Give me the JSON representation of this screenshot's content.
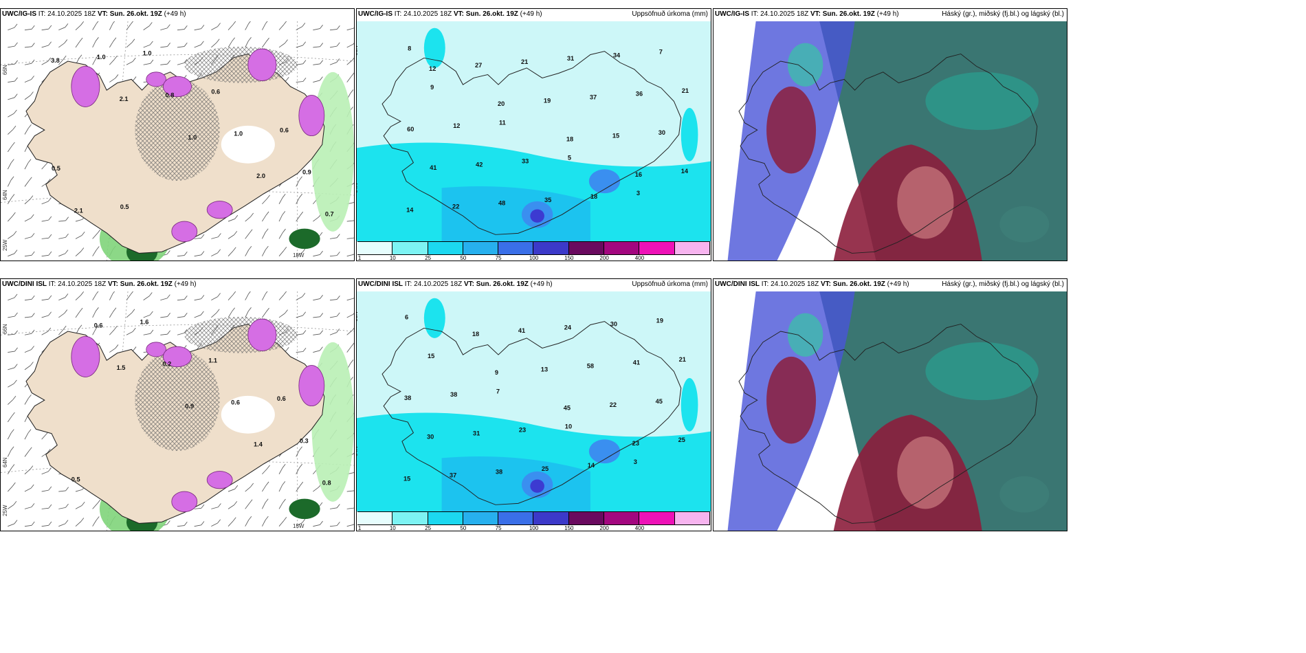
{
  "panels": [
    {
      "model": "UWC/IG-IS",
      "it_label": "IT:",
      "it": "24.10.2025 18Z",
      "vt_label": "VT:",
      "vt": "Sun. 26.okt. 19Z",
      "lead": "(+49 h)",
      "right": "",
      "kind": "precip_type"
    },
    {
      "model": "UWC/IG-IS",
      "it_label": "IT:",
      "it": "24.10.2025 18Z",
      "vt_label": "VT:",
      "vt": "Sun. 26.okt. 19Z",
      "lead": "(+49 h)",
      "right": "Uppsöfnuð úrkoma (mm)",
      "kind": "accum"
    },
    {
      "model": "UWC/IG-IS",
      "it_label": "IT:",
      "it": "24.10.2025 18Z",
      "vt_label": "VT:",
      "vt": "Sun. 26.okt. 19Z",
      "lead": "(+49 h)",
      "right": "Háský (gr.), miðský (fj.bl.) og lágský (bl.)",
      "kind": "clouds"
    },
    {
      "model": "UWC/DINI ISL",
      "it_label": "IT:",
      "it": "24.10.2025 18Z",
      "vt_label": "VT:",
      "vt": "Sun. 26.okt. 19Z",
      "lead": "(+49 h)",
      "right": "",
      "kind": "precip_type"
    },
    {
      "model": "UWC/DINI ISL",
      "it_label": "IT:",
      "it": "24.10.2025 18Z",
      "vt_label": "VT:",
      "vt": "Sun. 26.okt. 19Z",
      "lead": "(+49 h)",
      "right": "Uppsöfnuð úrkoma (mm)",
      "kind": "accum"
    },
    {
      "model": "UWC/DINI ISL",
      "it_label": "IT:",
      "it": "24.10.2025 18Z",
      "vt_label": "VT:",
      "vt": "Sun. 26.okt. 19Z",
      "lead": "(+49 h)",
      "right": "Háský (gr.), miðský (fj.bl.) og lágský (bl.)",
      "kind": "clouds"
    }
  ],
  "axis_labels": {
    "lat66": "66N",
    "lat64": "64N",
    "lon25": "25W",
    "lon15": "15W"
  },
  "colorbar": {
    "ticks": [
      "1",
      "10",
      "25",
      "50",
      "75",
      "100",
      "150",
      "200",
      "400"
    ],
    "colors": [
      "#e6fdfd",
      "#7df3f3",
      "#1cd8f0",
      "#27b0ee",
      "#3a6fe8",
      "#3c39c9",
      "#6a0a5f",
      "#a3077f",
      "#ee12b7",
      "#f7b4ef"
    ]
  },
  "precip_labels_top": [
    "3.8",
    "2.1",
    "1.0",
    "2.0",
    "0.7",
    "1.0",
    "0.8",
    "1.0",
    "0.9",
    "2.1",
    "1.0",
    "0.6",
    "0.6",
    "0.5",
    "0.5"
  ],
  "precip_labels_bottom": [
    "1.5",
    "0.9",
    "1.4",
    "0.8",
    "0.6",
    "0.2",
    "0.6",
    "0.3",
    "0.5",
    "1.6",
    "1.1",
    "0.6"
  ],
  "accum_labels_top": [
    "12",
    "20",
    "18",
    "16",
    "14",
    "27",
    "19",
    "15",
    "14",
    "22",
    "21",
    "37",
    "30",
    "41",
    "48",
    "31",
    "36",
    "60",
    "42",
    "35",
    "34",
    "21",
    "12",
    "33",
    "18",
    "7",
    "9",
    "11",
    "5",
    "3",
    "8"
  ],
  "accum_labels_bottom": [
    "9",
    "45",
    "23",
    "15",
    "18",
    "13",
    "22",
    "25",
    "37",
    "41",
    "58",
    "45",
    "30",
    "38",
    "24",
    "41",
    "38",
    "31",
    "25",
    "30",
    "21",
    "38",
    "23",
    "14",
    "19",
    "15",
    "7",
    "10",
    "3",
    "6"
  ]
}
